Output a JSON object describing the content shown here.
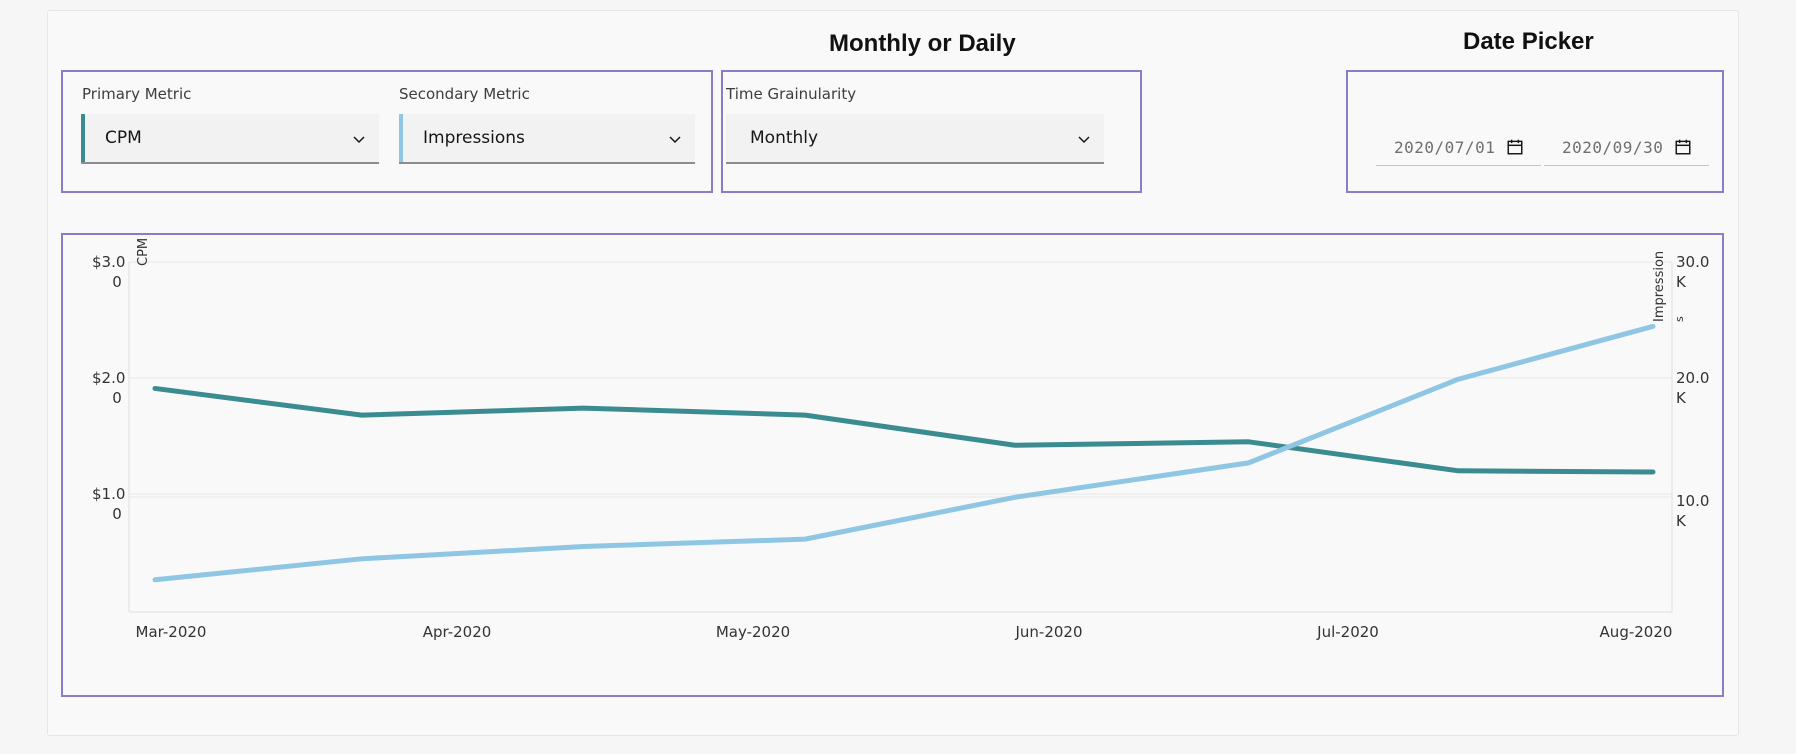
{
  "annotations": {
    "granularity_title": "Monthly or Daily",
    "date_title": "Date Picker",
    "box_color": "#8c7bc6"
  },
  "filters": {
    "primary": {
      "label": "Primary Metric",
      "value": "CPM",
      "accent": "#3b8c90"
    },
    "secondary": {
      "label": "Secondary Metric",
      "value": "Impressions",
      "accent": "#8fc6e3"
    },
    "granularity": {
      "label": "Time Grainularity",
      "value": "Monthly"
    }
  },
  "date_picker": {
    "start": "2020/07/01",
    "end": "2020/09/30"
  },
  "icons": {
    "dropdown": "chevron-down-icon",
    "calendar": "calendar-icon"
  },
  "chart_data": {
    "type": "line",
    "x": [
      0,
      0.5,
      1.0,
      1.5,
      2.0,
      2.5,
      3.0,
      3.5,
      4.0,
      4.5,
      5.0
    ],
    "categories": [
      "Mar-2020",
      "Apr-2020",
      "May-2020",
      "Jun-2020",
      "Jul-2020",
      "Aug-2020"
    ],
    "series": [
      {
        "name": "CPM",
        "axis": "left",
        "color": "#3b8c90",
        "values": [
          1.91,
          1.68,
          1.74,
          1.68,
          1.42,
          1.45,
          1.2,
          1.19
        ],
        "x": [
          0,
          0.69,
          1.43,
          2.17,
          2.87,
          3.65,
          4.35,
          5.0
        ]
      },
      {
        "name": "Impressions",
        "axis": "right",
        "color": "#8fc6e3",
        "values": [
          3.6,
          5.3,
          6.3,
          6.9,
          10.3,
          13.1,
          19.9,
          24.2
        ],
        "x": [
          0,
          0.69,
          1.43,
          2.17,
          2.87,
          3.65,
          4.35,
          5.0
        ]
      }
    ],
    "y_left": {
      "label": "CPM",
      "ticks": [
        {
          "v": 1.0,
          "a": "$1.0",
          "b": "0"
        },
        {
          "v": 2.0,
          "a": "$2.0",
          "b": "0"
        },
        {
          "v": 3.0,
          "a": "$3.0",
          "b": "0"
        }
      ],
      "ylim": [
        0,
        3.0
      ]
    },
    "y_right": {
      "label": "Impression",
      "label2": "s",
      "ticks": [
        {
          "v": 10.0,
          "a": "10.0",
          "b": "K"
        },
        {
          "v": 20.0,
          "a": "20.0",
          "b": "K"
        },
        {
          "v": 30.0,
          "a": "30.0",
          "b": "K"
        }
      ],
      "ylim": [
        0,
        30.0
      ]
    }
  }
}
